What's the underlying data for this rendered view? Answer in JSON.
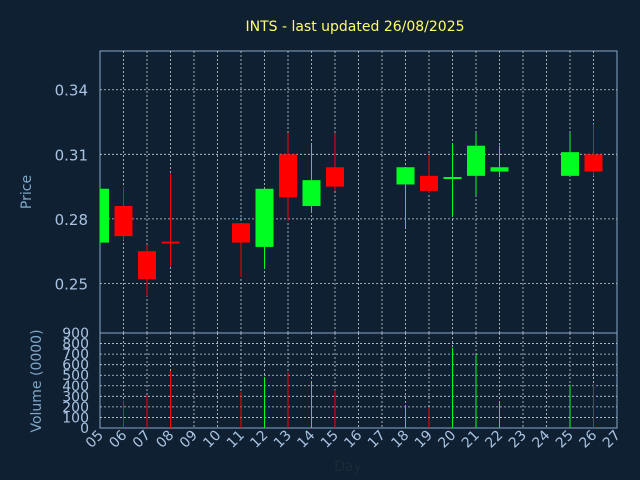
{
  "chart_data": {
    "type": "candlestick",
    "title": "INTS - last updated 26/08/2025",
    "xlabel": "Day",
    "days": [
      "05",
      "06",
      "07",
      "08",
      "09",
      "10",
      "11",
      "12",
      "13",
      "14",
      "15",
      "16",
      "17",
      "18",
      "19",
      "20",
      "21",
      "22",
      "23",
      "24",
      "25",
      "26",
      "27"
    ],
    "price_panel": {
      "ylabel": "Price",
      "ylim": [
        0.227,
        0.358
      ],
      "yticks": [
        0.25,
        0.28,
        0.31,
        0.34
      ],
      "ytick_labels": [
        "0.25",
        "0.28",
        "0.31",
        "0.34"
      ],
      "grid": true
    },
    "volume_panel": {
      "ylabel": "Volume (0000)",
      "ylim": [
        0,
        900
      ],
      "yticks": [
        0,
        100,
        200,
        300,
        400,
        500,
        600,
        700,
        800,
        900
      ],
      "ytick_labels": [
        "0",
        "100",
        "200",
        "300",
        "400",
        "500",
        "600",
        "700",
        "800",
        "900"
      ],
      "grid": true
    },
    "candles": [
      {
        "day": "05",
        "open": 0.269,
        "high": 0.295,
        "low": 0.268,
        "close": 0.294,
        "volume": 0
      },
      {
        "day": "06",
        "open": 0.286,
        "high": 0.295,
        "low": 0.27,
        "close": 0.272,
        "volume": 260
      },
      {
        "day": "07",
        "open": 0.265,
        "high": 0.268,
        "low": 0.244,
        "close": 0.252,
        "volume": 310
      },
      {
        "day": "08",
        "open": 0.269,
        "high": 0.301,
        "low": 0.258,
        "close": 0.269,
        "volume": 540
      },
      {
        "day": "11",
        "open": 0.278,
        "high": 0.278,
        "low": 0.253,
        "close": 0.269,
        "volume": 340
      },
      {
        "day": "12",
        "open": 0.267,
        "high": 0.294,
        "low": 0.257,
        "close": 0.294,
        "volume": 480
      },
      {
        "day": "13",
        "open": 0.31,
        "high": 0.32,
        "low": 0.279,
        "close": 0.29,
        "volume": 530
      },
      {
        "day": "14",
        "open": 0.286,
        "high": 0.315,
        "low": 0.283,
        "close": 0.298,
        "volume": 430
      },
      {
        "day": "15",
        "open": 0.304,
        "high": 0.32,
        "low": 0.293,
        "close": 0.295,
        "volume": 360
      },
      {
        "day": "18",
        "open": 0.296,
        "high": 0.304,
        "low": 0.276,
        "close": 0.304,
        "volume": 210
      },
      {
        "day": "19",
        "open": 0.3,
        "high": 0.31,
        "low": 0.292,
        "close": 0.293,
        "volume": 190
      },
      {
        "day": "20",
        "open": 0.299,
        "high": 0.315,
        "low": 0.281,
        "close": 0.3,
        "volume": 760
      },
      {
        "day": "21",
        "open": 0.3,
        "high": 0.32,
        "low": 0.291,
        "close": 0.314,
        "volume": 700
      },
      {
        "day": "22",
        "open": 0.302,
        "high": 0.314,
        "low": 0.3,
        "close": 0.304,
        "volume": 240
      },
      {
        "day": "25",
        "open": 0.3,
        "high": 0.32,
        "low": 0.3,
        "close": 0.311,
        "volume": 410
      },
      {
        "day": "26",
        "open": 0.31,
        "high": 0.324,
        "low": 0.3,
        "close": 0.302,
        "volume": 420
      }
    ]
  },
  "colors": {
    "background": "#0f2033",
    "title": "#ffff66",
    "axis_text": "#7fa6c6",
    "tick_label": "#a9c3e0",
    "frame": "#8aa6c4",
    "grid": "#c7cfd8",
    "up": "#00ff21",
    "down": "#ff0000",
    "neutral_wick": "#ff0000"
  }
}
